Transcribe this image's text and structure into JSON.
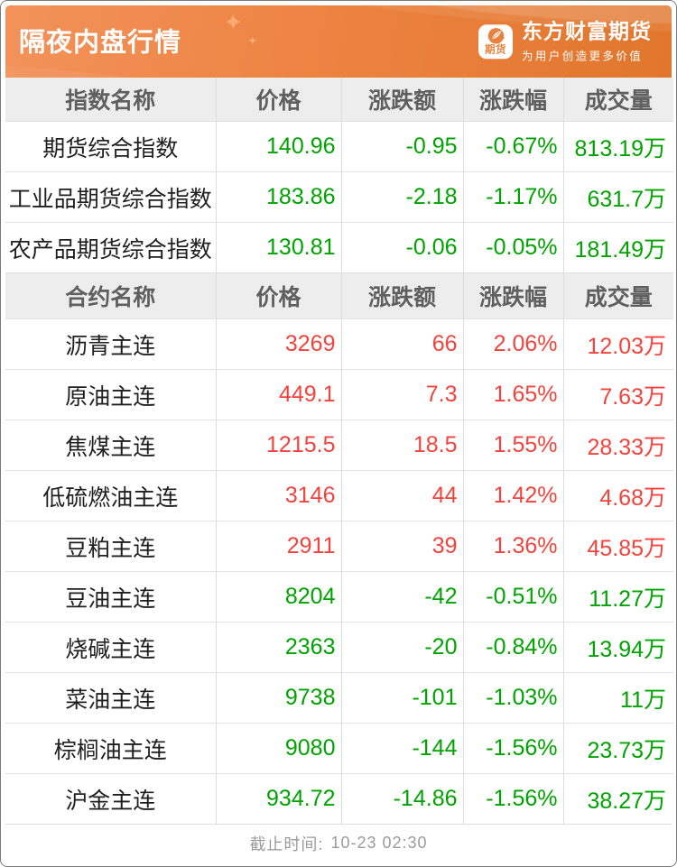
{
  "banner": {
    "title": "隔夜内盘行情",
    "sparkle_icon": "✦",
    "brand": {
      "logo_badge": "期货",
      "name": "东方财富期货",
      "slogan": "为用户创造更多价值"
    }
  },
  "colors": {
    "up": "#f4433c",
    "down": "#00a400",
    "banner_from": "#f2925a",
    "banner_mid": "#ed8443",
    "banner_to": "#e1762c",
    "sparkle": "#f8a96e",
    "brand_orange": "#e8823e"
  },
  "tables": [
    {
      "id": "index-table",
      "headers": [
        "指数名称",
        "价格",
        "涨跌额",
        "涨跌幅",
        "成交量"
      ],
      "rows": [
        {
          "name": "期货综合指数",
          "price": "140.96",
          "change": "-0.95",
          "pct": "-0.67%",
          "volume": "813.19万",
          "trend": "down"
        },
        {
          "name": "工业品期货综合指数",
          "price": "183.86",
          "change": "-2.18",
          "pct": "-1.17%",
          "volume": "631.7万",
          "trend": "down"
        },
        {
          "name": "农产品期货综合指数",
          "price": "130.81",
          "change": "-0.06",
          "pct": "-0.05%",
          "volume": "181.49万",
          "trend": "down"
        }
      ]
    },
    {
      "id": "contract-table",
      "headers": [
        "合约名称",
        "价格",
        "涨跌额",
        "涨跌幅",
        "成交量"
      ],
      "rows": [
        {
          "name": "沥青主连",
          "price": "3269",
          "change": "66",
          "pct": "2.06%",
          "volume": "12.03万",
          "trend": "up"
        },
        {
          "name": "原油主连",
          "price": "449.1",
          "change": "7.3",
          "pct": "1.65%",
          "volume": "7.63万",
          "trend": "up"
        },
        {
          "name": "焦煤主连",
          "price": "1215.5",
          "change": "18.5",
          "pct": "1.55%",
          "volume": "28.33万",
          "trend": "up"
        },
        {
          "name": "低硫燃油主连",
          "price": "3146",
          "change": "44",
          "pct": "1.42%",
          "volume": "4.68万",
          "trend": "up"
        },
        {
          "name": "豆粕主连",
          "price": "2911",
          "change": "39",
          "pct": "1.36%",
          "volume": "45.85万",
          "trend": "up"
        },
        {
          "name": "豆油主连",
          "price": "8204",
          "change": "-42",
          "pct": "-0.51%",
          "volume": "11.27万",
          "trend": "down"
        },
        {
          "name": "烧碱主连",
          "price": "2363",
          "change": "-20",
          "pct": "-0.84%",
          "volume": "13.94万",
          "trend": "down"
        },
        {
          "name": "菜油主连",
          "price": "9738",
          "change": "-101",
          "pct": "-1.03%",
          "volume": "11万",
          "trend": "down"
        },
        {
          "name": "棕榈油主连",
          "price": "9080",
          "change": "-144",
          "pct": "-1.56%",
          "volume": "23.73万",
          "trend": "down"
        },
        {
          "name": "沪金主连",
          "price": "934.72",
          "change": "-14.86",
          "pct": "-1.56%",
          "volume": "38.27万",
          "trend": "down"
        }
      ]
    }
  ],
  "footer": {
    "label": "截止时间:",
    "time": "10-23 02:30"
  }
}
